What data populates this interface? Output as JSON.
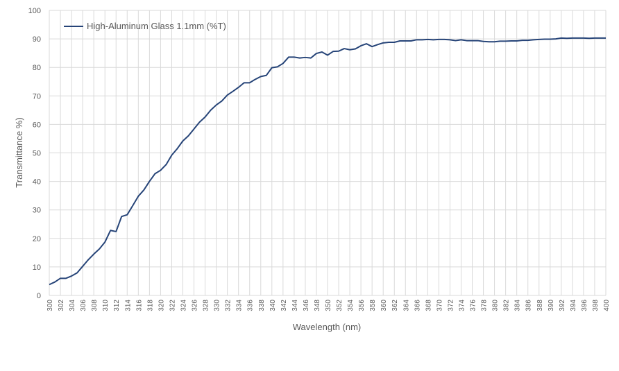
{
  "chart_data": {
    "type": "line",
    "x_label": "Wavelength (nm)",
    "y_label": "Transmittance %)",
    "x": [
      300,
      301,
      302,
      303,
      304,
      305,
      306,
      307,
      308,
      309,
      310,
      311,
      312,
      313,
      314,
      315,
      316,
      317,
      318,
      319,
      320,
      321,
      322,
      323,
      324,
      325,
      326,
      327,
      328,
      329,
      330,
      331,
      332,
      333,
      334,
      335,
      336,
      337,
      338,
      339,
      340,
      341,
      342,
      343,
      344,
      345,
      346,
      347,
      348,
      349,
      350,
      351,
      352,
      353,
      354,
      355,
      356,
      357,
      358,
      359,
      360,
      361,
      362,
      363,
      364,
      365,
      366,
      367,
      368,
      369,
      370,
      371,
      372,
      373,
      374,
      375,
      376,
      377,
      378,
      379,
      380,
      381,
      382,
      383,
      384,
      385,
      386,
      387,
      388,
      389,
      390,
      391,
      392,
      393,
      394,
      395,
      396,
      397,
      398,
      399,
      400
    ],
    "series": [
      {
        "name": "High-Aluminum Glass 1.1mm (%T)",
        "color": "#264478",
        "values": [
          3.8,
          4.7,
          6.0,
          6.0,
          6.8,
          7.9,
          10.2,
          12.5,
          14.5,
          16.3,
          18.7,
          22.8,
          22.4,
          27.7,
          28.3,
          31.5,
          34.8,
          37.0,
          40.0,
          42.7,
          43.9,
          45.9,
          49.2,
          51.5,
          54.2,
          56.0,
          58.4,
          60.8,
          62.6,
          65.0,
          66.8,
          68.2,
          70.3,
          71.6,
          73.0,
          74.6,
          74.6,
          75.8,
          76.8,
          77.2,
          79.9,
          80.2,
          81.4,
          83.6,
          83.6,
          83.3,
          83.5,
          83.3,
          84.9,
          85.4,
          84.3,
          85.6,
          85.7,
          86.6,
          86.2,
          86.5,
          87.6,
          88.3,
          87.3,
          88.0,
          88.6,
          88.8,
          88.8,
          89.3,
          89.3,
          89.3,
          89.7,
          89.7,
          89.8,
          89.7,
          89.8,
          89.8,
          89.7,
          89.4,
          89.7,
          89.4,
          89.4,
          89.4,
          89.1,
          89.0,
          89.0,
          89.2,
          89.2,
          89.3,
          89.3,
          89.5,
          89.5,
          89.7,
          89.8,
          89.9,
          89.9,
          90.0,
          90.3,
          90.2,
          90.3,
          90.3,
          90.3,
          90.2,
          90.3,
          90.3,
          90.3
        ]
      }
    ],
    "xlim": [
      300,
      400
    ],
    "xticks": [
      300,
      302,
      304,
      306,
      308,
      310,
      312,
      314,
      316,
      318,
      320,
      322,
      324,
      326,
      328,
      330,
      332,
      334,
      336,
      338,
      340,
      342,
      344,
      346,
      348,
      350,
      352,
      354,
      356,
      358,
      360,
      362,
      364,
      366,
      368,
      370,
      372,
      374,
      376,
      378,
      380,
      382,
      384,
      386,
      388,
      390,
      392,
      394,
      396,
      398,
      400
    ],
    "ylim": [
      0,
      100
    ],
    "yticks": [
      0,
      10,
      20,
      30,
      40,
      50,
      60,
      70,
      80,
      90,
      100
    ],
    "grid": true,
    "legend": "top-left"
  }
}
